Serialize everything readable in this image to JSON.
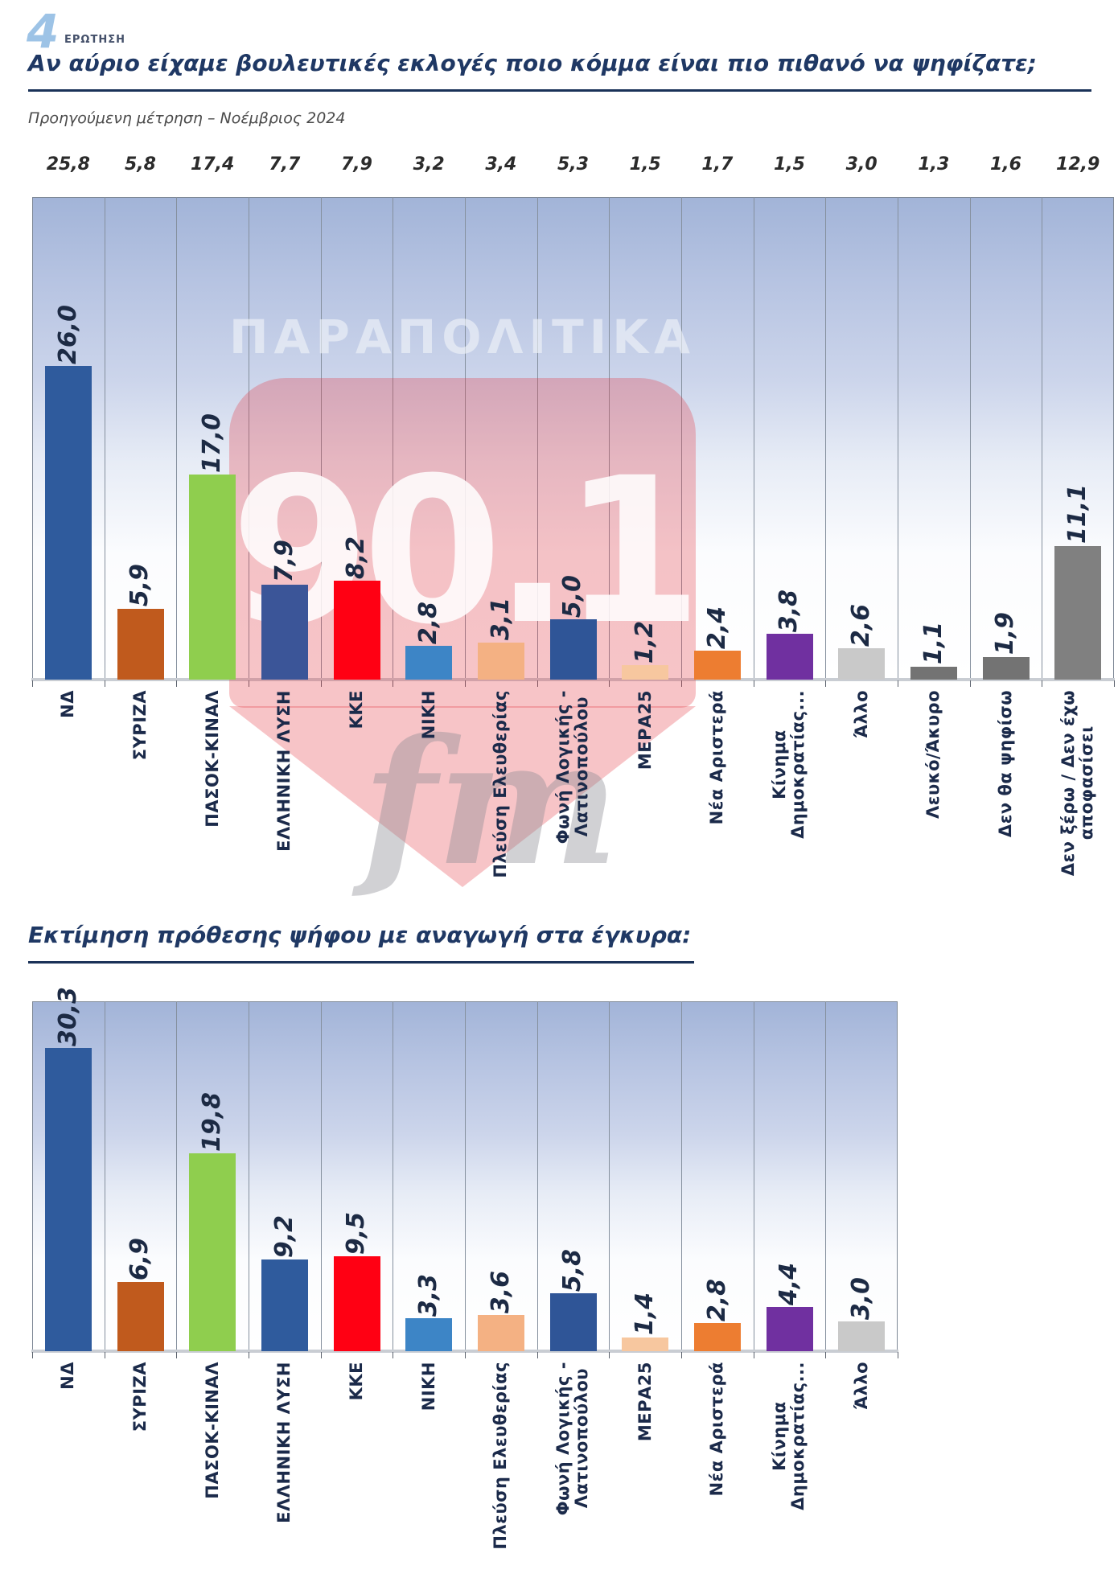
{
  "header": {
    "logo_number": "4",
    "logo_label": "ΕΡΩΤΗΣΗ"
  },
  "watermark": {
    "top_text": "ΠΑΡΑΠΟΛΙΤΙΚΑ",
    "number": "90.1",
    "suffix": "fm",
    "accent_color": "#e03c46"
  },
  "chart_data": [
    {
      "type": "bar",
      "title": "Αν αύριο είχαμε βουλευτικές εκλογές ποιο κόμμα είναι πιο πιθανό να ψηφίζατε;",
      "previous_measurement_label": "Προηγούμενη μέτρηση – Νοέμβριος 2024",
      "ylim": [
        0,
        40
      ],
      "grid": "vertical-column-separators",
      "categories": [
        "ΝΔ",
        "ΣΥΡΙΖΑ",
        "ΠΑΣΟΚ-ΚΙΝΑΛ",
        "ΕΛΛΗΝΙΚΗ ΛΥΣΗ",
        "ΚΚΕ",
        "ΝΙΚΗ",
        "Πλεύση Ελευθερίας",
        "Φωνή Λογικής - Λατινοπούλου",
        "ΜΕΡΑ25",
        "Νέα Αριστερά",
        "Κίνημα Δημοκρατίας...",
        "Άλλο",
        "Λευκό/Άκυρο",
        "Δεν θα ψηφίσω",
        "Δεν ξέρω / Δεν έχω αποφασίσει"
      ],
      "category_lines": [
        [
          "ΝΔ"
        ],
        [
          "ΣΥΡΙΖΑ"
        ],
        [
          "ΠΑΣΟΚ-ΚΙΝΑΛ"
        ],
        [
          "ΕΛΛΗΝΙΚΗ ΛΥΣΗ"
        ],
        [
          "ΚΚΕ"
        ],
        [
          "ΝΙΚΗ"
        ],
        [
          "Πλεύση Ελευθερίας"
        ],
        [
          "Φωνή Λογικής -",
          "Λατινοπούλου"
        ],
        [
          "ΜΕΡΑ25"
        ],
        [
          "Νέα Αριστερά"
        ],
        [
          "Κίνημα",
          "Δημοκρατίας..."
        ],
        [
          "Άλλο"
        ],
        [
          "Λευκό/Άκυρο"
        ],
        [
          "Δεν θα ψηφίσω"
        ],
        [
          "Δεν ξέρω / Δεν έχω",
          "αποφασίσει"
        ]
      ],
      "values": [
        26.0,
        5.9,
        17.0,
        7.9,
        8.2,
        2.8,
        3.1,
        5.0,
        1.2,
        2.4,
        3.8,
        2.6,
        1.1,
        1.9,
        11.1
      ],
      "value_labels": [
        "26,0",
        "5,9",
        "17,0",
        "7,9",
        "8,2",
        "2,8",
        "3,1",
        "5,0",
        "1,2",
        "2,4",
        "3,8",
        "2,6",
        "1,1",
        "1,9",
        "11,1"
      ],
      "previous_values": [
        25.8,
        5.8,
        17.4,
        7.7,
        7.9,
        3.2,
        3.4,
        5.3,
        1.5,
        1.7,
        1.5,
        3.0,
        1.3,
        1.6,
        12.9
      ],
      "previous_value_labels": [
        "25,8",
        "5,8",
        "17,4",
        "7,7",
        "7,9",
        "3,2",
        "3,4",
        "5,3",
        "1,5",
        "1,7",
        "1,5",
        "3,0",
        "1,3",
        "1,6",
        "12,9"
      ],
      "bar_colors": [
        "#2f5b9d",
        "#c05a1d",
        "#8fce4e",
        "#3b5598",
        "#ff0013",
        "#3d85c6",
        "#f4b183",
        "#2f5597",
        "#f7c79f",
        "#ed7d31",
        "#7030a0",
        "#c9c9c9",
        "#737373",
        "#737373",
        "#808080"
      ]
    },
    {
      "type": "bar",
      "title": "Εκτίμηση πρόθεσης ψήφου με αναγωγή στα έγκυρα:",
      "ylim": [
        0,
        35
      ],
      "grid": "vertical-column-separators",
      "categories": [
        "ΝΔ",
        "ΣΥΡΙΖΑ",
        "ΠΑΣΟΚ-ΚΙΝΑΛ",
        "ΕΛΛΗΝΙΚΗ ΛΥΣΗ",
        "ΚΚΕ",
        "ΝΙΚΗ",
        "Πλεύση Ελευθερίας",
        "Φωνή Λογικής - Λατινοπούλου",
        "ΜΕΡΑ25",
        "Νέα Αριστερά",
        "Κίνημα Δημοκρατίας...",
        "Άλλο"
      ],
      "category_lines": [
        [
          "ΝΔ"
        ],
        [
          "ΣΥΡΙΖΑ"
        ],
        [
          "ΠΑΣΟΚ-ΚΙΝΑΛ"
        ],
        [
          "ΕΛΛΗΝΙΚΗ ΛΥΣΗ"
        ],
        [
          "ΚΚΕ"
        ],
        [
          "ΝΙΚΗ"
        ],
        [
          "Πλεύση Ελευθερίας"
        ],
        [
          "Φωνή Λογικής -",
          "Λατινοπούλου"
        ],
        [
          "ΜΕΡΑ25"
        ],
        [
          "Νέα Αριστερά"
        ],
        [
          "Κίνημα",
          "Δημοκρατίας..."
        ],
        [
          "Άλλο"
        ]
      ],
      "values": [
        30.3,
        6.9,
        19.8,
        9.2,
        9.5,
        3.3,
        3.6,
        5.8,
        1.4,
        2.8,
        4.4,
        3.0
      ],
      "value_labels": [
        "30,3",
        "6,9",
        "19,8",
        "9,2",
        "9,5",
        "3,3",
        "3,6",
        "5,8",
        "1,4",
        "2,8",
        "4,4",
        "3,0"
      ],
      "bar_colors": [
        "#2f5b9d",
        "#c05a1d",
        "#8fce4e",
        "#2f5b9d",
        "#ff0013",
        "#3d85c6",
        "#f4b183",
        "#2f5597",
        "#f7c79f",
        "#ed7d31",
        "#7030a0",
        "#c9c9c9"
      ]
    }
  ]
}
